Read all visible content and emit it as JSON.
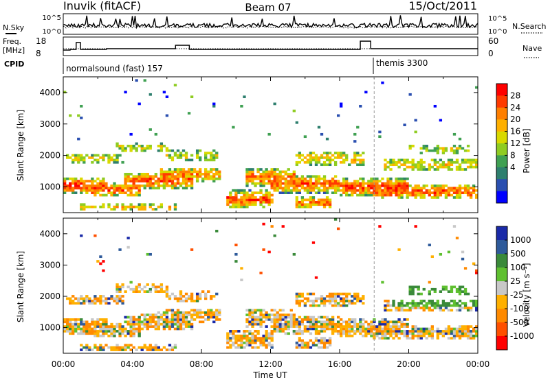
{
  "header": {
    "station": "Inuvik (fitACF)",
    "beam": "Beam 07",
    "date": "15/Oct/2011"
  },
  "strips": {
    "nsky_label": "N.Sky",
    "nsky_ticks": [
      "10^5",
      "10^0"
    ],
    "nsearch_label": "N.Search",
    "nsearch_ticks": [
      "10^5",
      "10^0"
    ],
    "freq_label": "Freq.",
    "freq_unit": "[MHz]",
    "freq_ticks": [
      "18",
      "8"
    ],
    "nave_label": "Nave",
    "nave_ticks": [
      "60",
      "0"
    ],
    "cpid_label": "CPID",
    "cpid_segments": [
      {
        "name": "normalsound (fast) 157",
        "start_hour": 0
      },
      {
        "name": "themis 3300",
        "start_hour": 18.0
      }
    ]
  },
  "chart_data": [
    {
      "type": "heatmap",
      "name": "power",
      "ylabel": "Slant Range [km]",
      "xlim_hours": [
        0,
        24
      ],
      "ylim_km": [
        180,
        4500
      ],
      "yticks": [
        "1000",
        "2000",
        "3000",
        "4000"
      ],
      "colorbar_label": "Power [dB]",
      "colorbar_ticks": [
        "28",
        "24",
        "20",
        "16",
        "12",
        "8",
        "4"
      ],
      "colorbar_colors": [
        "#ff0000",
        "#ff3a00",
        "#ff7f00",
        "#ffb000",
        "#d9d900",
        "#8fcc22",
        "#3fa052",
        "#2e7f6e",
        "#2a4fb0",
        "#0000ff"
      ]
    },
    {
      "type": "heatmap",
      "name": "velocity",
      "ylabel": "Slant Range [km]",
      "xlabel": "Time UT",
      "xlim_hours": [
        0,
        24
      ],
      "ylim_km": [
        180,
        4500
      ],
      "yticks": [
        "1000",
        "2000",
        "3000",
        "4000"
      ],
      "xticks": [
        "00:00",
        "04:00",
        "08:00",
        "12:00",
        "16:00",
        "20:00",
        "00:00"
      ],
      "colorbar_label": "Velocity [m s⁻¹]",
      "colorbar_ticks": [
        "1000",
        "500",
        "100",
        "25",
        "-25",
        "-100",
        "-500",
        "-1000"
      ],
      "colorbar_colors": [
        "#1a2aa8",
        "#2e5a9a",
        "#3a8a3a",
        "#5fc030",
        "#c8c8c8",
        "#ffb000",
        "#ff8a00",
        "#ff5000",
        "#ff0000"
      ]
    }
  ]
}
